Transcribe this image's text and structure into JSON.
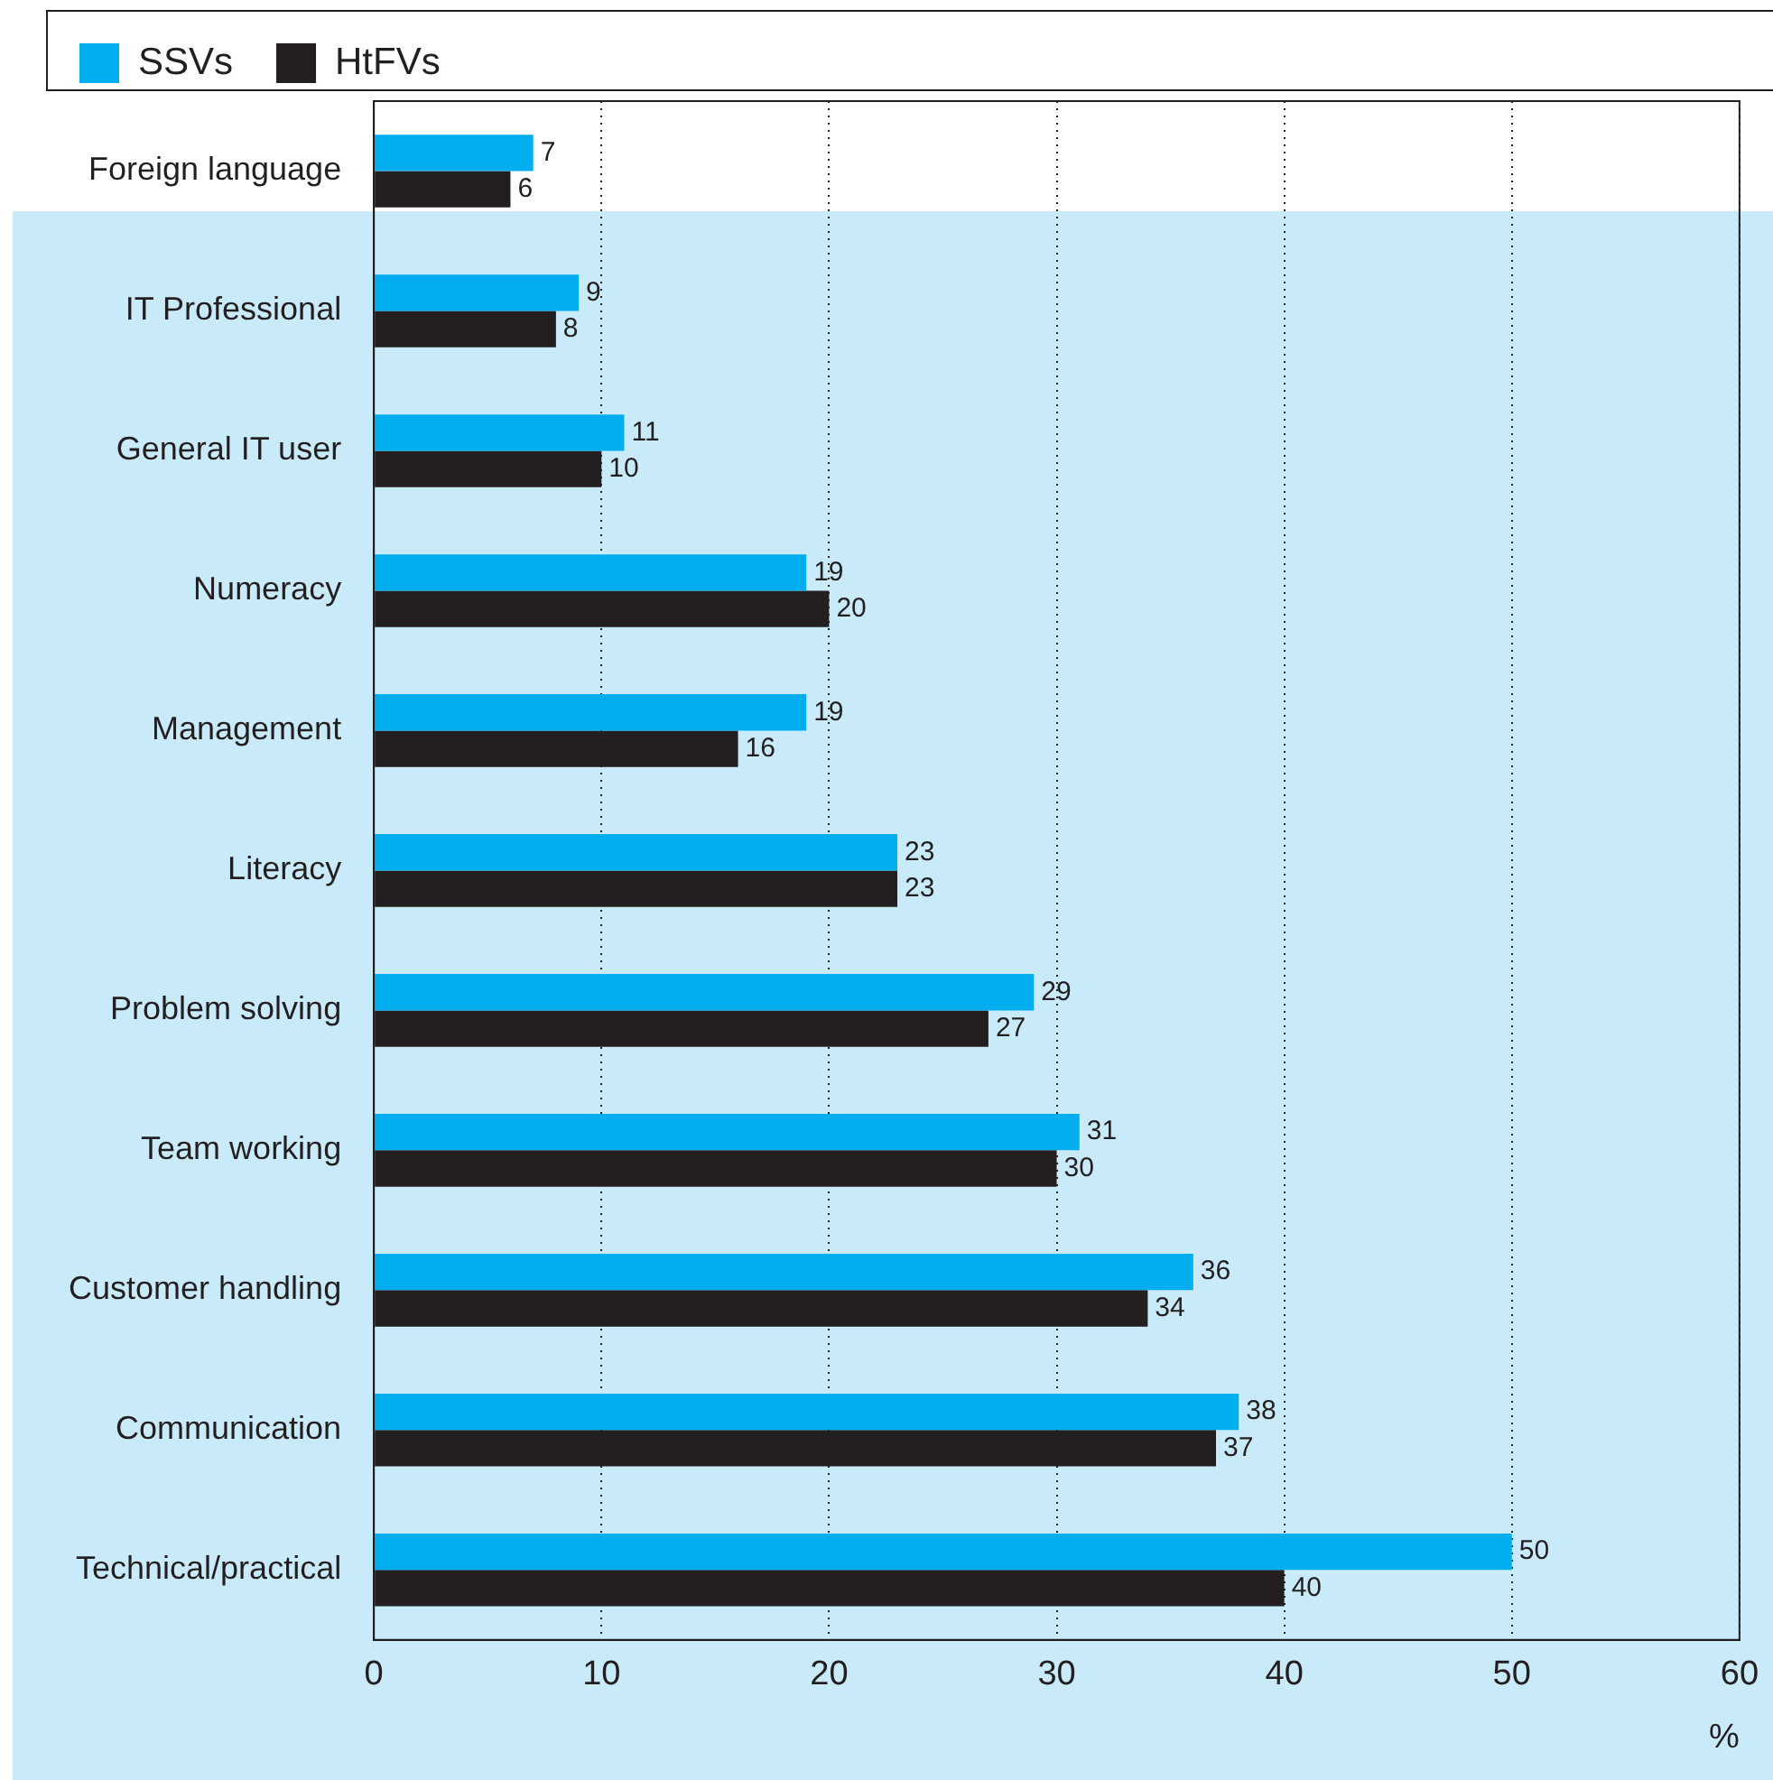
{
  "chart_data": {
    "type": "bar",
    "orientation": "horizontal",
    "xlabel": "%",
    "categories": [
      "Foreign language",
      "IT Professional",
      "General IT user",
      "Numeracy",
      "Management",
      "Literacy",
      "Problem solving",
      "Team working",
      "Customer handling",
      "Communication",
      "Technical/practical"
    ],
    "series": [
      {
        "name": "SSVs",
        "color": "#00aeef",
        "values": [
          7,
          9,
          11,
          19,
          19,
          23,
          29,
          31,
          36,
          38,
          50
        ]
      },
      {
        "name": "HtFVs",
        "color": "#231f20",
        "values": [
          6,
          8,
          10,
          20,
          16,
          23,
          27,
          30,
          34,
          37,
          40
        ]
      }
    ],
    "xlim": [
      0,
      60
    ],
    "xticks": [
      0,
      10,
      20,
      30,
      40,
      50,
      60
    ],
    "grid": "x",
    "legend": "top left",
    "data_labels": true
  }
}
